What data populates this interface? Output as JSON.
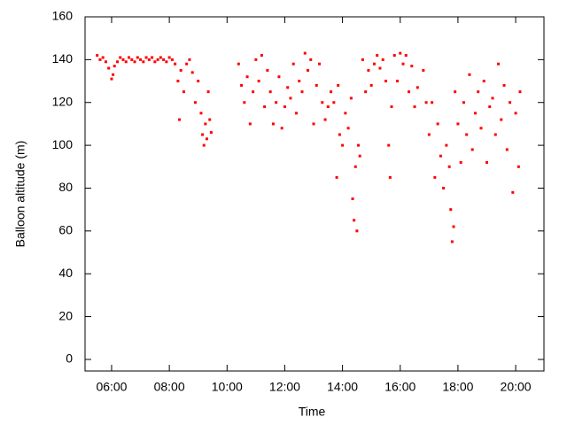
{
  "chart_data": {
    "type": "scatter",
    "xlabel": "Time",
    "ylabel": "Balloon altitude (m)",
    "color": "#ff0000",
    "xlim": [
      5.08,
      20.98
    ],
    "ylim": [
      -5.4,
      160
    ],
    "xticks": [
      {
        "value": 6,
        "label": "06:00"
      },
      {
        "value": 8,
        "label": "08:00"
      },
      {
        "value": 10,
        "label": "10:00"
      },
      {
        "value": 12,
        "label": "12:00"
      },
      {
        "value": 14,
        "label": "14:00"
      },
      {
        "value": 16,
        "label": "16:00"
      },
      {
        "value": 18,
        "label": "18:00"
      },
      {
        "value": 20,
        "label": "20:00"
      }
    ],
    "yticks": [
      0,
      20,
      40,
      60,
      80,
      100,
      120,
      140,
      160
    ],
    "x": [
      5.5,
      5.6,
      5.7,
      5.8,
      5.9,
      6.0,
      6.05,
      6.1,
      6.2,
      6.3,
      6.4,
      6.5,
      6.6,
      6.7,
      6.8,
      6.9,
      7.0,
      7.1,
      7.2,
      7.3,
      7.4,
      7.5,
      7.6,
      7.7,
      7.8,
      7.9,
      8.0,
      8.1,
      8.2,
      8.3,
      8.35,
      8.4,
      8.5,
      8.6,
      8.7,
      8.8,
      8.9,
      9.0,
      9.1,
      9.15,
      9.2,
      9.25,
      9.3,
      9.35,
      9.4,
      9.45,
      10.4,
      10.5,
      10.6,
      10.7,
      10.8,
      10.9,
      11.0,
      11.1,
      11.2,
      11.3,
      11.4,
      11.5,
      11.6,
      11.7,
      11.8,
      11.9,
      12.0,
      12.1,
      12.2,
      12.3,
      12.4,
      12.5,
      12.6,
      12.7,
      12.8,
      12.9,
      13.0,
      13.1,
      13.2,
      13.3,
      13.4,
      13.5,
      13.6,
      13.7,
      13.8,
      13.85,
      13.9,
      14.0,
      14.1,
      14.2,
      14.3,
      14.35,
      14.4,
      14.45,
      14.5,
      14.55,
      14.6,
      14.7,
      14.8,
      14.9,
      15.0,
      15.1,
      15.2,
      15.3,
      15.4,
      15.5,
      15.6,
      15.65,
      15.7,
      15.8,
      15.9,
      16.0,
      16.1,
      16.2,
      16.3,
      16.4,
      16.5,
      16.6,
      16.8,
      16.9,
      17.0,
      17.1,
      17.2,
      17.3,
      17.4,
      17.5,
      17.6,
      17.7,
      17.75,
      17.8,
      17.85,
      17.9,
      18.0,
      18.1,
      18.2,
      18.3,
      18.4,
      18.5,
      18.6,
      18.7,
      18.8,
      18.9,
      19.0,
      19.1,
      19.2,
      19.3,
      19.4,
      19.5,
      19.6,
      19.7,
      19.8,
      19.9,
      20.0,
      20.1,
      20.15
    ],
    "values": [
      142,
      140,
      141,
      139,
      136,
      131,
      133,
      137,
      139,
      141,
      140,
      139,
      141,
      140,
      139,
      141,
      140,
      139,
      141,
      140,
      141,
      139,
      140,
      141,
      140,
      139,
      141,
      140,
      138,
      130,
      112,
      135,
      125,
      138,
      140,
      134,
      120,
      130,
      115,
      105,
      100,
      110,
      103,
      125,
      112,
      106,
      138,
      128,
      120,
      132,
      110,
      125,
      140,
      130,
      142,
      118,
      135,
      125,
      110,
      120,
      132,
      108,
      118,
      127,
      122,
      138,
      115,
      130,
      125,
      143,
      135,
      140,
      110,
      128,
      138,
      120,
      112,
      118,
      125,
      120,
      85,
      128,
      105,
      100,
      115,
      108,
      122,
      75,
      65,
      90,
      60,
      100,
      95,
      140,
      125,
      135,
      128,
      138,
      142,
      136,
      140,
      130,
      100,
      85,
      118,
      142,
      130,
      143,
      138,
      142,
      125,
      137,
      118,
      127,
      135,
      120,
      105,
      120,
      85,
      110,
      95,
      80,
      100,
      90,
      70,
      55,
      62,
      125,
      110,
      92,
      120,
      105,
      133,
      98,
      115,
      125,
      108,
      130,
      92,
      118,
      122,
      105,
      138,
      112,
      128,
      98,
      120,
      78,
      115,
      90,
      125
    ]
  }
}
